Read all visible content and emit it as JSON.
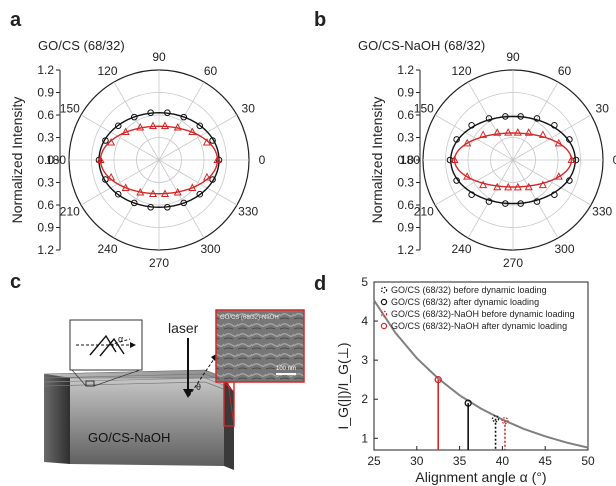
{
  "chart_data": [
    {
      "panel": "a",
      "type": "polar",
      "title": "GO/CS (68/32)",
      "radial_label": "Normalized Intensity",
      "radial_ticks": [
        "1.2",
        "0.9",
        "0.6",
        "0.3",
        "0.0",
        "0.3",
        "0.6",
        "0.9",
        "1.2"
      ],
      "angle_labels": [
        "0",
        "30",
        "60",
        "90",
        "120",
        "150",
        "180",
        "210",
        "240",
        "270",
        "300",
        "330"
      ],
      "rlim": [
        0,
        1.2
      ],
      "series": [
        {
          "color": "#111111",
          "marker": "circle",
          "fit": {
            "a": 0.8,
            "b": 0.63
          },
          "points": [
            [
              0,
              0.8
            ],
            [
              20,
              0.76
            ],
            [
              40,
              0.71
            ],
            [
              60,
              0.66
            ],
            [
              80,
              0.64
            ],
            [
              100,
              0.64
            ],
            [
              120,
              0.66
            ],
            [
              140,
              0.71
            ],
            [
              160,
              0.76
            ],
            [
              180,
              0.8
            ],
            [
              200,
              0.76
            ],
            [
              220,
              0.71
            ],
            [
              240,
              0.66
            ],
            [
              260,
              0.64
            ],
            [
              280,
              0.64
            ],
            [
              300,
              0.66
            ],
            [
              320,
              0.71
            ],
            [
              340,
              0.76
            ]
          ]
        },
        {
          "color": "#d62728",
          "marker": "triangle",
          "fit": {
            "a": 0.78,
            "b": 0.45
          },
          "points": [
            [
              0,
              0.78
            ],
            [
              20,
              0.68
            ],
            [
              40,
              0.58
            ],
            [
              60,
              0.5
            ],
            [
              80,
              0.46
            ],
            [
              100,
              0.46
            ],
            [
              120,
              0.5
            ],
            [
              140,
              0.58
            ],
            [
              160,
              0.68
            ],
            [
              180,
              0.78
            ],
            [
              200,
              0.68
            ],
            [
              220,
              0.58
            ],
            [
              240,
              0.5
            ],
            [
              260,
              0.46
            ],
            [
              280,
              0.46
            ],
            [
              300,
              0.5
            ],
            [
              320,
              0.58
            ],
            [
              340,
              0.68
            ]
          ]
        }
      ]
    },
    {
      "panel": "b",
      "type": "polar",
      "title": "GO/CS-NaOH (68/32)",
      "radial_label": "Normalized Intensity",
      "radial_ticks": [
        "1.2",
        "0.9",
        "0.6",
        "0.3",
        "0.0",
        "0.3",
        "0.6",
        "0.9",
        "1.2"
      ],
      "angle_labels": [
        "0",
        "30",
        "60",
        "90",
        "120",
        "150",
        "180",
        "210",
        "240",
        "270",
        "300",
        "330"
      ],
      "rlim": [
        0,
        1.2
      ],
      "series": [
        {
          "color": "#111111",
          "marker": "circle",
          "fit": {
            "a": 0.83,
            "b": 0.58
          },
          "points": [
            [
              0,
              0.84
            ],
            [
              20,
              0.8
            ],
            [
              40,
              0.72
            ],
            [
              60,
              0.64
            ],
            [
              80,
              0.59
            ],
            [
              100,
              0.59
            ],
            [
              120,
              0.64
            ],
            [
              140,
              0.72
            ],
            [
              160,
              0.8
            ],
            [
              180,
              0.84
            ],
            [
              200,
              0.8
            ],
            [
              220,
              0.72
            ],
            [
              240,
              0.64
            ],
            [
              260,
              0.59
            ],
            [
              280,
              0.59
            ],
            [
              300,
              0.64
            ],
            [
              320,
              0.72
            ],
            [
              340,
              0.8
            ]
          ]
        },
        {
          "color": "#d62728",
          "marker": "triangle",
          "fit": {
            "a": 0.78,
            "b": 0.36
          },
          "points": [
            [
              0,
              0.78
            ],
            [
              20,
              0.65
            ],
            [
              40,
              0.52
            ],
            [
              60,
              0.42
            ],
            [
              80,
              0.37
            ],
            [
              100,
              0.37
            ],
            [
              120,
              0.42
            ],
            [
              140,
              0.52
            ],
            [
              160,
              0.65
            ],
            [
              180,
              0.78
            ],
            [
              200,
              0.65
            ],
            [
              220,
              0.52
            ],
            [
              240,
              0.42
            ],
            [
              260,
              0.37
            ],
            [
              280,
              0.37
            ],
            [
              300,
              0.42
            ],
            [
              320,
              0.52
            ],
            [
              340,
              0.65
            ]
          ]
        }
      ]
    },
    {
      "panel": "d",
      "type": "line",
      "xlabel": "Alignment angle α (°)",
      "ylabel": "I_G(||)/I_G(⊥)",
      "xlim": [
        25,
        50
      ],
      "ylim": [
        0.7,
        5
      ],
      "xticks": [
        "25",
        "30",
        "35",
        "40",
        "45",
        "50"
      ],
      "yticks": [
        "1",
        "2",
        "3",
        "4",
        "5"
      ],
      "curve": {
        "x": [
          25,
          27.5,
          30,
          32.5,
          35,
          37.5,
          40,
          42.5,
          45,
          47.5,
          50
        ],
        "y": [
          4.53,
          3.7,
          3.05,
          2.53,
          2.1,
          1.76,
          1.48,
          1.24,
          1.05,
          0.89,
          0.76
        ]
      },
      "markers": [
        {
          "label": "GO/CS (68/32) before dynamic loading",
          "x": 39.2,
          "y": 1.5,
          "color": "#111111",
          "style": "dotted"
        },
        {
          "label": "GO/CS (68/32) after dynamic loading",
          "x": 36.0,
          "y": 1.9,
          "color": "#111111",
          "style": "solid"
        },
        {
          "label": "GO/CS (68/32)-NaOH before dynamic loading",
          "x": 40.3,
          "y": 1.45,
          "color": "#d62728",
          "style": "dotted"
        },
        {
          "label": "GO/CS (68/32)-NaOH after dynamic loading",
          "x": 32.5,
          "y": 2.5,
          "color": "#d62728",
          "style": "solid"
        }
      ]
    }
  ],
  "panels": {
    "a": "a",
    "b": "b",
    "c": "c",
    "d": "d"
  },
  "illustration": {
    "label": "GO/CS-NaOH",
    "laser": "laser",
    "alpha": "α",
    "theta": "θ",
    "sem_title": "GO/CS (68/32)-NaOH",
    "scale_bar": "100 nm"
  }
}
